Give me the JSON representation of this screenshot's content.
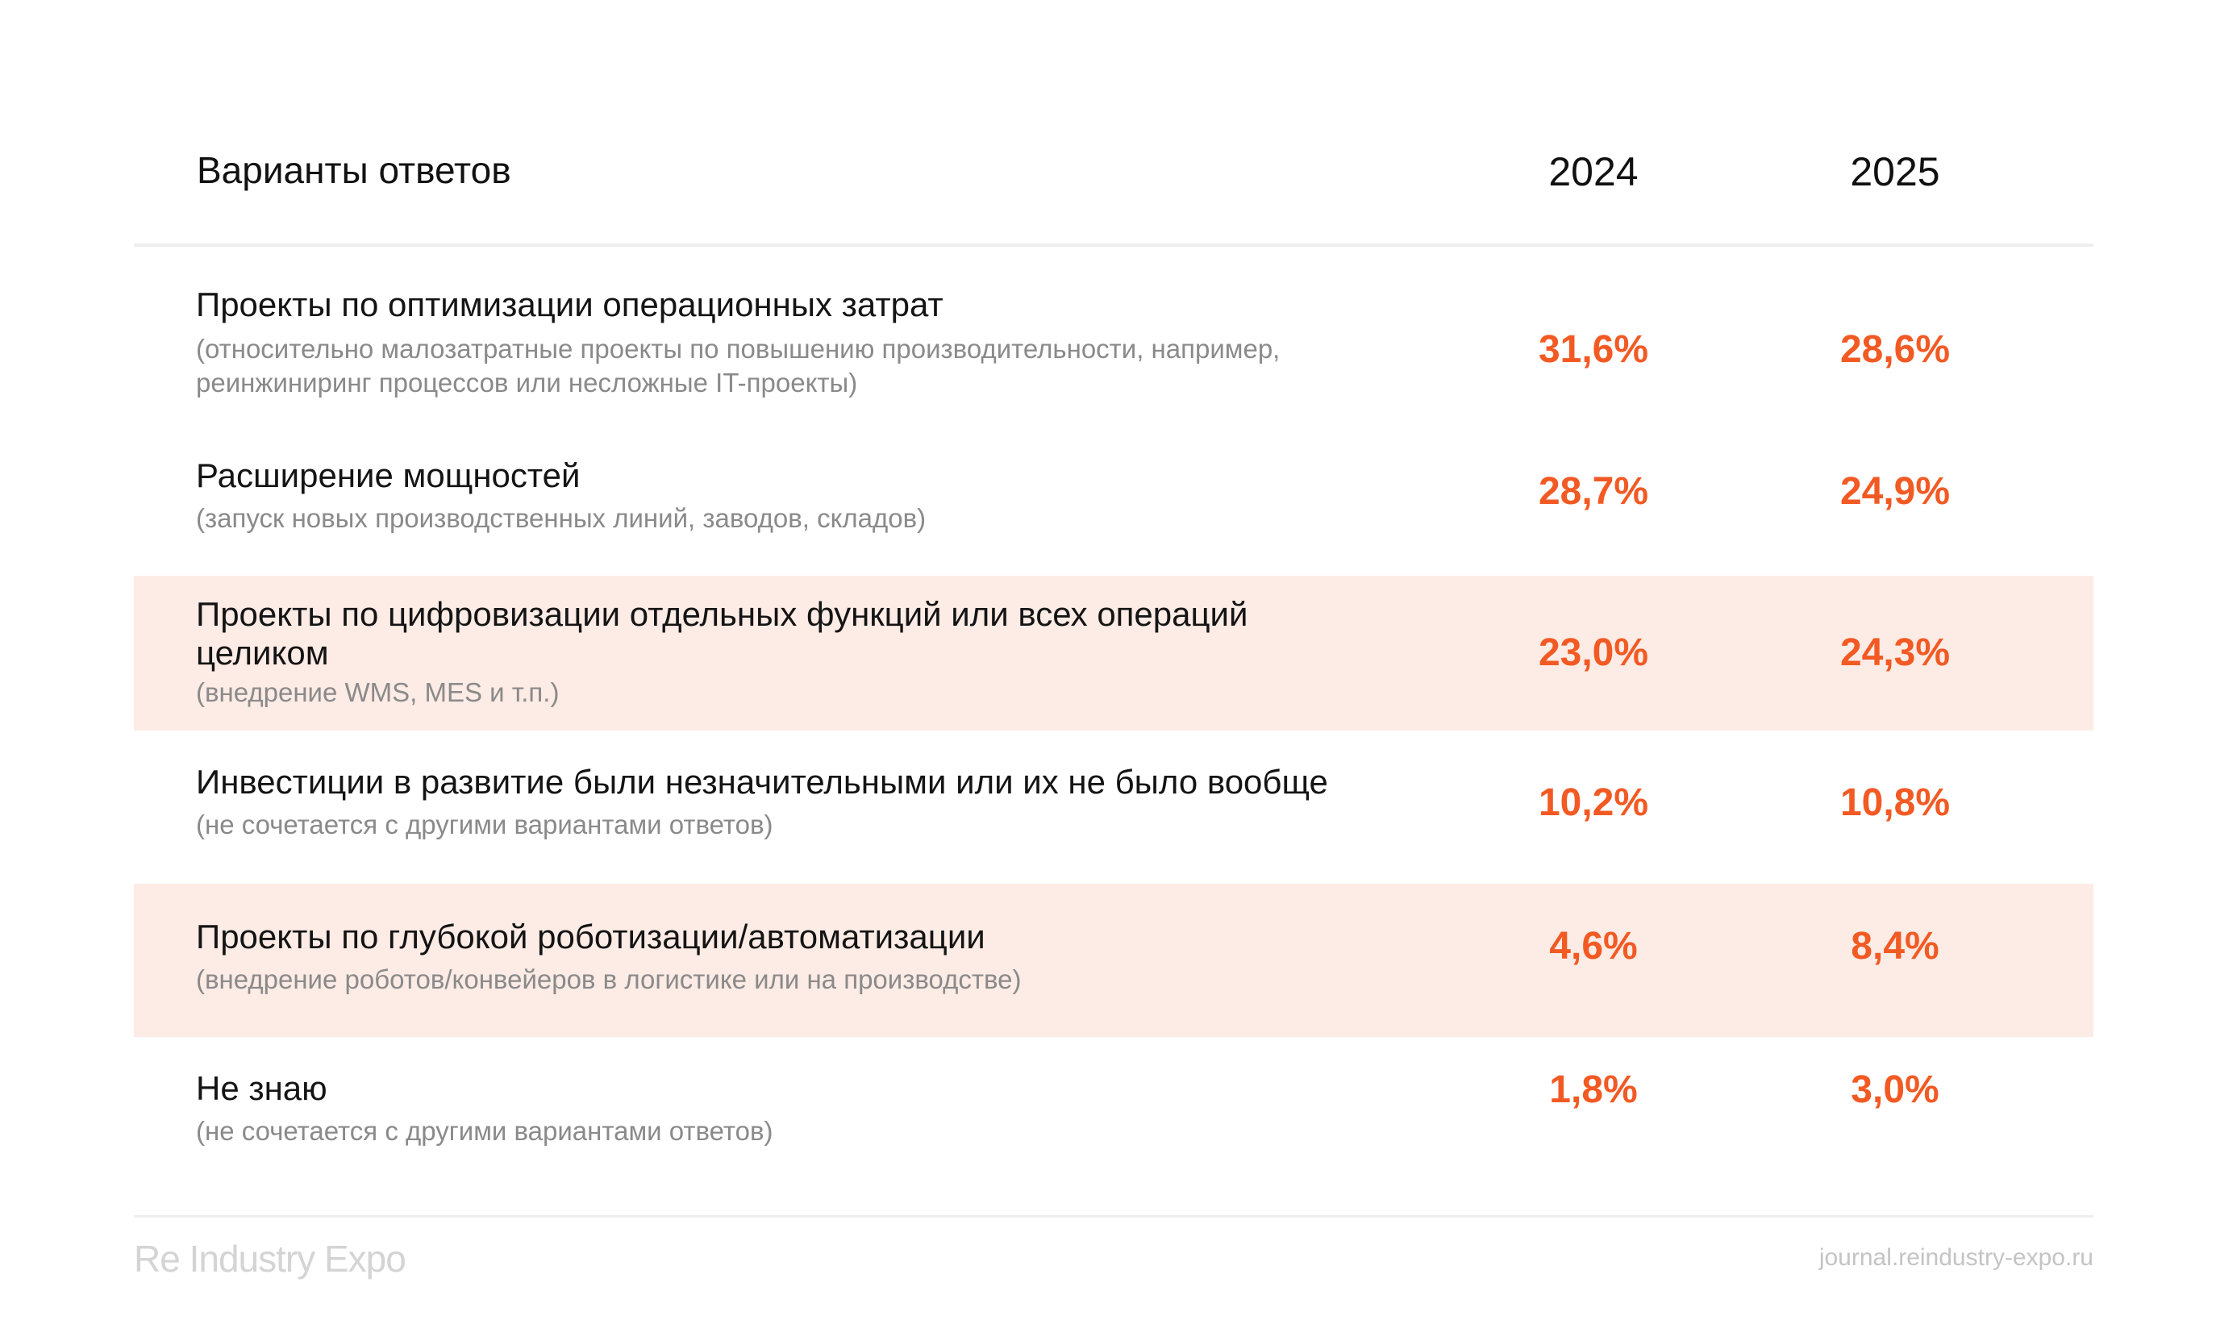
{
  "chart_data": {
    "type": "table",
    "columns": [
      "Варианты ответов",
      "2024",
      "2025"
    ],
    "rows": [
      {
        "title": "Проекты по оптимизации операционных затрат",
        "subtitle": "(относительно малозатратные проекты по повышению производительности, например, реинжиниринг процессов или несложные IT-проекты)",
        "v2024": "31,6%",
        "v2025": "28,6%",
        "highlight": false
      },
      {
        "title": "Расширение мощностей",
        "subtitle": "(запуск новых производственных линий, заводов, складов)",
        "v2024": "28,7%",
        "v2025": "24,9%",
        "highlight": false
      },
      {
        "title": "Проекты по цифровизации отдельных функций или всех операций целиком",
        "subtitle": "(внедрение WMS, MES и т.п.)",
        "v2024": "23,0%",
        "v2025": "24,3%",
        "highlight": true
      },
      {
        "title": "Инвестиции в развитие были незначительными или их не было вообще",
        "subtitle": "(не сочетается с другими вариантами ответов)",
        "v2024": "10,2%",
        "v2025": "10,8%",
        "highlight": false
      },
      {
        "title": "Проекты по глубокой роботизации/автоматизации",
        "subtitle": "(внедрение роботов/конвейеров в логистике или на производстве)",
        "v2024": "4,6%",
        "v2025": "8,4%",
        "highlight": true
      },
      {
        "title": "Не знаю",
        "subtitle": "(не сочетается с другими вариантами ответов)",
        "v2024": "1,8%",
        "v2025": "3,0%",
        "highlight": false
      }
    ],
    "accent_color": "#f25a24",
    "highlight_color": "#fdebe5"
  },
  "footer": {
    "logo": "Re Industry Expo",
    "url": "journal.reindustry-expo.ru"
  }
}
